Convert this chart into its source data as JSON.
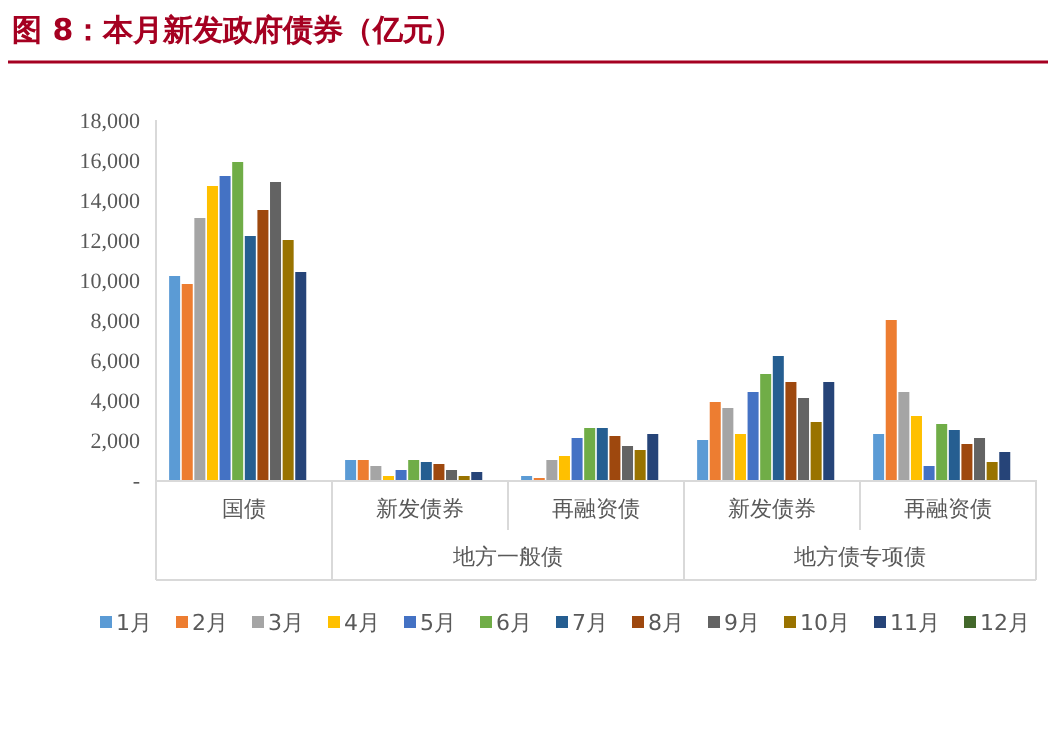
{
  "chart_data": {
    "type": "bar",
    "title": "图 8：本月新发政府债券（亿元）",
    "categories": [
      "国债",
      "新发债券",
      "再融资债",
      "新发债券",
      "再融资债"
    ],
    "annotations": [
      "地方一般债",
      "地方债专项债"
    ],
    "ylim": [
      0,
      18000
    ],
    "yticks": [
      {
        "value": 0,
        "label": "-"
      },
      {
        "value": 2000,
        "label": "2,000"
      },
      {
        "value": 4000,
        "label": "4,000"
      },
      {
        "value": 6000,
        "label": "6,000"
      },
      {
        "value": 8000,
        "label": "8,000"
      },
      {
        "value": 10000,
        "label": "10,000"
      },
      {
        "value": 12000,
        "label": "12,000"
      },
      {
        "value": 14000,
        "label": "14,000"
      },
      {
        "value": 16000,
        "label": "16,000"
      },
      {
        "value": 18000,
        "label": "18,000"
      }
    ],
    "grid": false,
    "legend": "bottom",
    "series": [
      {
        "name": "1月",
        "color": "#5b9bd5",
        "values": [
          10200,
          1000,
          200,
          2000,
          2300
        ]
      },
      {
        "name": "2月",
        "color": "#ed7d31",
        "values": [
          9800,
          1000,
          100,
          3900,
          8000
        ]
      },
      {
        "name": "3月",
        "color": "#a5a5a5",
        "values": [
          13100,
          700,
          1000,
          3600,
          4400
        ]
      },
      {
        "name": "4月",
        "color": "#ffc000",
        "values": [
          14700,
          200,
          1200,
          2300,
          3200
        ]
      },
      {
        "name": "5月",
        "color": "#4472c4",
        "values": [
          15200,
          500,
          2100,
          4400,
          700
        ]
      },
      {
        "name": "6月",
        "color": "#70ad47",
        "values": [
          15900,
          1000,
          2600,
          5300,
          2800
        ]
      },
      {
        "name": "7月",
        "color": "#255e91",
        "values": [
          12200,
          900,
          2600,
          6200,
          2500
        ]
      },
      {
        "name": "8月",
        "color": "#9e480e",
        "values": [
          13500,
          800,
          2200,
          4900,
          1800
        ]
      },
      {
        "name": "9月",
        "color": "#636363",
        "values": [
          14900,
          500,
          1700,
          4100,
          2100
        ]
      },
      {
        "name": "10月",
        "color": "#997300",
        "values": [
          12000,
          200,
          1500,
          2900,
          900
        ]
      },
      {
        "name": "11月",
        "color": "#264478",
        "values": [
          10400,
          400,
          2300,
          4900,
          1400
        ]
      },
      {
        "name": "12月",
        "color": "#43682b",
        "values": [
          null,
          null,
          null,
          null,
          null
        ]
      }
    ]
  }
}
